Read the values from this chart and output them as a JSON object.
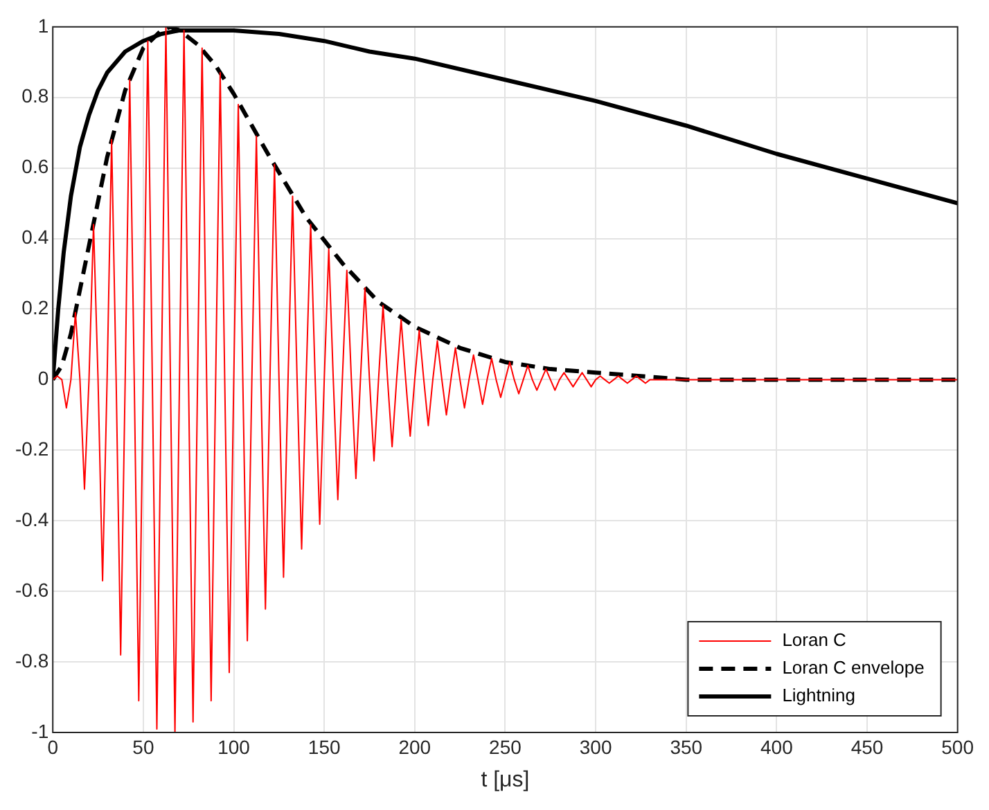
{
  "chart_data": {
    "type": "line",
    "xlabel": "t [μs]",
    "xlim": [
      0,
      500
    ],
    "xticks": [
      0,
      50,
      100,
      150,
      200,
      250,
      300,
      350,
      400,
      450,
      500
    ],
    "ylim": [
      -1,
      1
    ],
    "yticks": [
      -1,
      -0.8,
      -0.6,
      -0.4,
      -0.2,
      0,
      0.2,
      0.4,
      0.6,
      0.8,
      1
    ],
    "grid": true,
    "legend": "bottom right",
    "marker": "none",
    "series": [
      {
        "name": "Loran C",
        "color": "#ff0000",
        "line_style": "solid",
        "x": [
          0,
          2.5,
          5,
          7.5,
          10,
          12.5,
          15,
          17.5,
          20,
          22.5,
          25,
          27.5,
          30,
          32.5,
          35,
          37.5,
          40,
          42.5,
          45,
          47.5,
          50,
          52.5,
          55,
          57.5,
          60,
          62.5,
          65,
          67.5,
          70,
          72.5,
          75,
          77.5,
          80,
          82.5,
          85,
          87.5,
          90,
          92.5,
          95,
          97.5,
          100,
          102.5,
          105,
          107.5,
          110,
          112.5,
          115,
          117.5,
          120,
          122.5,
          125,
          127.5,
          130,
          132.5,
          135,
          137.5,
          140,
          142.5,
          145,
          147.5,
          150,
          152.5,
          155,
          157.5,
          160,
          162.5,
          165,
          167.5,
          170,
          172.5,
          175,
          177.5,
          180,
          182.5,
          185,
          187.5,
          190,
          192.5,
          195,
          197.5,
          200,
          202.5,
          205,
          207.5,
          210,
          212.5,
          215,
          217.5,
          220,
          222.5,
          225,
          227.5,
          230,
          232.5,
          235,
          237.5,
          240,
          242.5,
          245,
          247.5,
          250,
          252.5,
          255,
          257.5,
          260,
          262.5,
          265,
          267.5,
          270,
          272.5,
          275,
          277.5,
          280,
          282.5,
          285,
          287.5,
          290,
          292.5,
          295,
          297.5,
          300,
          302.5,
          305,
          307.5,
          310,
          312.5,
          315,
          317.5,
          320,
          322.5,
          325,
          327.5,
          330,
          400,
          500
        ],
        "values": [
          0,
          0.01,
          0,
          -0.08,
          0,
          0.19,
          0,
          -0.31,
          0,
          0.44,
          0,
          -0.57,
          0,
          0.68,
          0,
          -0.78,
          0,
          0.85,
          0,
          -0.91,
          0,
          0.96,
          0,
          -0.99,
          0,
          1,
          0,
          -1,
          0,
          0.99,
          0,
          -0.97,
          0,
          0.94,
          0,
          -0.91,
          0,
          0.87,
          0,
          -0.83,
          0,
          0.78,
          0,
          -0.74,
          0,
          0.69,
          0,
          -0.65,
          0,
          0.61,
          0,
          -0.56,
          0,
          0.52,
          0,
          -0.48,
          0,
          0.44,
          0,
          -0.41,
          0,
          0.37,
          0,
          -0.34,
          0,
          0.31,
          0,
          -0.28,
          0,
          0.26,
          0,
          -0.23,
          0,
          0.21,
          0,
          -0.19,
          0,
          0.17,
          0,
          -0.16,
          0,
          0.14,
          0,
          -0.13,
          0,
          0.11,
          0,
          -0.1,
          0,
          0.09,
          0,
          -0.08,
          0,
          0.07,
          0,
          -0.07,
          0,
          0.06,
          0,
          -0.05,
          0,
          0.05,
          0,
          -0.04,
          0,
          0.04,
          0,
          -0.03,
          0,
          0.03,
          0,
          -0.03,
          0,
          0.02,
          0,
          -0.02,
          0,
          0.02,
          0,
          -0.02,
          0,
          0.01,
          0,
          -0.01,
          0,
          0.01,
          0,
          -0.01,
          0,
          0.01,
          0,
          -0.01,
          0,
          0,
          0
        ]
      },
      {
        "name": "Loran C envelope",
        "color": "#000000",
        "line_style": "dashed",
        "x": [
          0,
          5,
          10,
          20,
          30,
          40,
          50,
          60,
          65,
          70,
          80,
          90,
          100,
          120,
          140,
          160,
          180,
          200,
          225,
          250,
          275,
          300,
          350,
          400,
          500
        ],
        "values": [
          0,
          0.04,
          0.13,
          0.38,
          0.63,
          0.82,
          0.94,
          0.99,
          1,
          0.99,
          0.95,
          0.89,
          0.81,
          0.63,
          0.46,
          0.33,
          0.22,
          0.15,
          0.09,
          0.05,
          0.03,
          0.02,
          0,
          0,
          0
        ]
      },
      {
        "name": "Lightning",
        "color": "#000000",
        "line_style": "solid",
        "x": [
          0,
          3,
          6,
          10,
          15,
          20,
          25,
          30,
          40,
          50,
          60,
          70,
          80,
          90,
          100,
          125,
          150,
          175,
          200,
          250,
          300,
          350,
          400,
          450,
          500
        ],
        "values": [
          0,
          0.2,
          0.36,
          0.52,
          0.66,
          0.75,
          0.82,
          0.87,
          0.93,
          0.96,
          0.98,
          0.99,
          0.99,
          0.99,
          0.99,
          0.98,
          0.96,
          0.93,
          0.91,
          0.85,
          0.79,
          0.72,
          0.64,
          0.57,
          0.5
        ]
      }
    ]
  }
}
